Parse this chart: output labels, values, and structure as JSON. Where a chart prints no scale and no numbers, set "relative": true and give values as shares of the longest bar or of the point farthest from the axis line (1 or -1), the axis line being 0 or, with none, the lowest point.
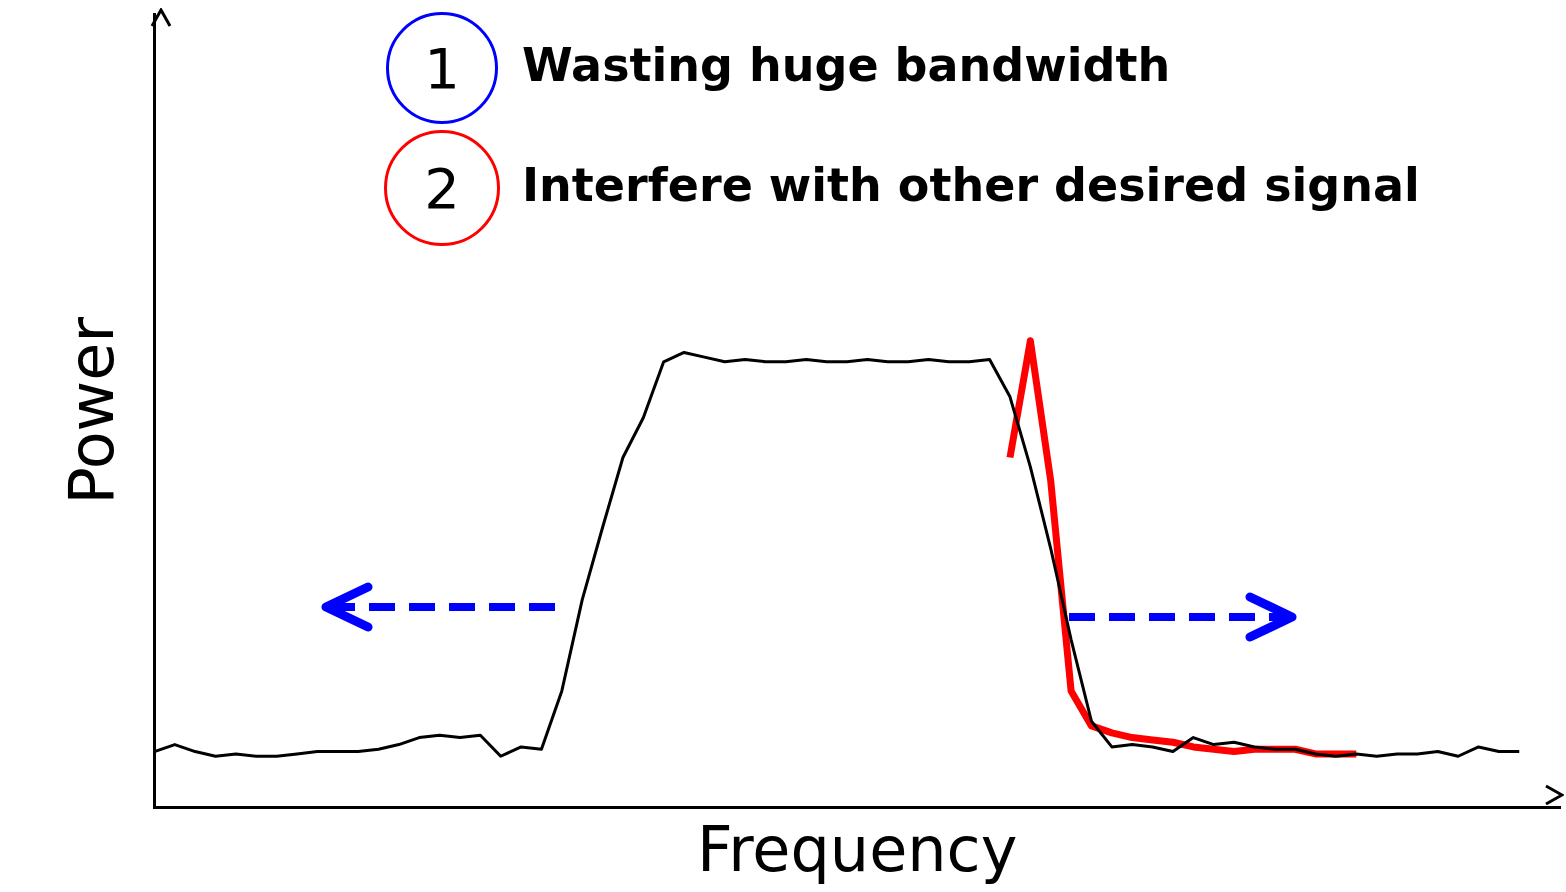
{
  "chart_data": {
    "type": "line",
    "relative": true,
    "xlabel": "Frequency",
    "ylabel": "Power",
    "legend": false,
    "grid": false,
    "marker": "none",
    "line_style": "solid",
    "annotations": [
      "1",
      "Wasting huge bandwidth",
      "2",
      "Interfere with other desired signal"
    ],
    "categories": [
      null,
      null,
      null,
      null,
      null,
      null,
      null,
      null,
      null,
      null,
      null,
      null,
      null,
      null,
      null,
      null,
      null,
      null,
      null,
      null,
      null,
      null,
      null,
      null,
      null,
      null,
      null,
      null,
      null,
      null,
      null,
      null,
      null,
      null,
      null,
      null,
      null,
      null,
      null,
      null,
      null,
      null,
      null,
      null,
      null,
      null,
      null,
      null,
      null,
      null,
      null,
      null,
      null,
      null,
      null,
      null,
      null,
      null,
      null,
      null,
      null,
      null,
      null,
      null,
      null,
      null,
      null,
      null,
      null,
      null
    ],
    "series": [
      {
        "color": "#000000",
        "values": [
          0.12,
          0.135,
          0.12,
          0.11,
          0.115,
          0.11,
          0.11,
          0.115,
          0.12,
          0.12,
          0.12,
          0.125,
          0.135,
          0.15,
          0.155,
          0.15,
          0.155,
          0.11,
          0.13,
          0.125,
          0.25,
          0.445,
          0.6,
          0.75,
          0.835,
          0.955,
          0.975,
          0.965,
          0.955,
          0.96,
          0.955,
          0.955,
          0.96,
          0.955,
          0.955,
          0.96,
          0.955,
          0.955,
          0.96,
          0.955,
          0.955,
          0.96,
          0.88,
          0.73,
          0.555,
          0.36,
          0.185,
          0.13,
          0.135,
          0.13,
          0.12,
          0.15,
          0.135,
          0.14,
          0.13,
          0.125,
          0.125,
          0.115,
          0.11,
          0.115,
          0.11,
          0.115,
          0.115,
          0.12,
          0.11,
          0.13,
          0.12,
          0.12,
          null,
          null
        ]
      },
      {
        "color": "#ff0000",
        "values": [
          null,
          null,
          null,
          null,
          null,
          null,
          null,
          null,
          null,
          null,
          null,
          null,
          null,
          null,
          null,
          null,
          null,
          null,
          null,
          null,
          null,
          null,
          null,
          null,
          null,
          null,
          null,
          null,
          null,
          null,
          null,
          null,
          null,
          null,
          null,
          null,
          null,
          null,
          null,
          null,
          null,
          null,
          0.75,
          1,
          0.7,
          0.25,
          0.175,
          0.16,
          0.15,
          0.145,
          0.14,
          0.13,
          0.125,
          0.12,
          0.125,
          0.125,
          0.125,
          0.115,
          0.115,
          0.115,
          null,
          null,
          null,
          null,
          null,
          null,
          null,
          null,
          null,
          null
        ]
      }
    ]
  }
}
